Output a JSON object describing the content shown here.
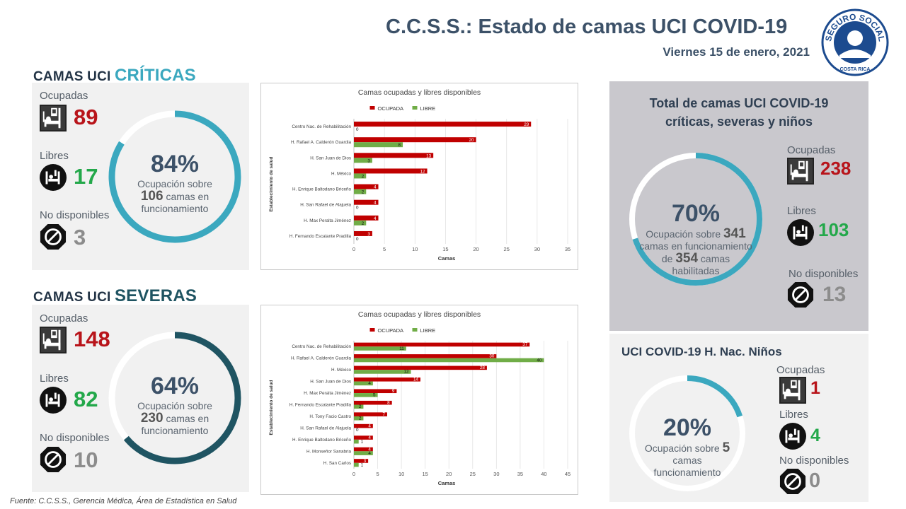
{
  "header": {
    "title": "C.C.S.S.: Estado de camas UCI COVID-19",
    "date": "Viernes 15 de enero, 2021",
    "logo_top": "SEGURO SOCIAL",
    "logo_bottom": "COSTA RICA"
  },
  "labels": {
    "occupied": "Ocupadas",
    "free": "Libres",
    "unavailable": "No disponibles",
    "occ_over": "Ocupación sobre",
    "beds_op": "camas en",
    "operating": "funcionamiento",
    "beds_operating": "camas en funcionamiento",
    "of": "de",
    "beds": "camas",
    "enabled": "habilitadas"
  },
  "criticas": {
    "title_small": "CAMAS UCI",
    "title_big": "CRÍTICAS",
    "occupied": "89",
    "free": "17",
    "unavailable": "3",
    "pct_text": "84%",
    "pct": 0.84,
    "total": "106",
    "ring_color": "#3ba8bf"
  },
  "severas": {
    "title_small": "CAMAS UCI",
    "title_big": "SEVERAS",
    "occupied": "148",
    "free": "82",
    "unavailable": "10",
    "pct_text": "64%",
    "pct": 0.64,
    "total": "230",
    "ring_color": "#1f5462"
  },
  "total": {
    "title_line1": "Total de camas UCI COVID-19",
    "title_line2": "críticas, severas y niños",
    "occupied": "238",
    "free": "103",
    "unavailable": "13",
    "pct_text": "70%",
    "pct": 0.7,
    "total": "341",
    "enabled": "354",
    "ring_color": "#3ba8bf"
  },
  "ninos": {
    "title": "UCI COVID-19 H. Nac. Niños",
    "occupied": "1",
    "free": "4",
    "unavailable": "0",
    "pct_text": "20%",
    "pct": 0.2,
    "total": "5",
    "ring_color": "#3ba8bf"
  },
  "source": "Fuente: C.C.S.S., Gerencia Médica, Área de Estadística en Salud",
  "chart_data": [
    {
      "type": "bar",
      "orientation": "horizontal",
      "title": "Camas ocupadas y libres disponibles",
      "xlabel": "Camas",
      "ylabel": "Establecimiento de salud",
      "xlim": [
        0,
        35
      ],
      "xticks": [
        0,
        5,
        10,
        15,
        20,
        25,
        30,
        35
      ],
      "grid": true,
      "legend": "top",
      "categories": [
        "Centro Nac. de Rehabilitación",
        "H. Rafael A. Calderón Guardia",
        "H. San Juan de Dios",
        "H. México",
        "H. Enrique Baltodano Briceño",
        "H. San Rafael de Alajuela",
        "H. Max Peralta Jiménez",
        "H. Fernando Escalante Pradilla"
      ],
      "series": [
        {
          "name": "OCUPADA",
          "color": "#c00000",
          "values": [
            29,
            20,
            13,
            12,
            4,
            4,
            4,
            3
          ]
        },
        {
          "name": "LIBRE",
          "color": "#70ad47",
          "values": [
            0,
            8,
            3,
            2,
            2,
            0,
            2,
            0
          ]
        }
      ]
    },
    {
      "type": "bar",
      "orientation": "horizontal",
      "title": "Camas ocupadas y libres disponibles",
      "xlabel": "Camas",
      "ylabel": "Establecimiento de salud",
      "xlim": [
        0,
        45
      ],
      "xticks": [
        0,
        5,
        10,
        15,
        20,
        25,
        30,
        35,
        40,
        45
      ],
      "grid": true,
      "legend": "top",
      "categories": [
        "Centro Nac. de Rehabilitación",
        "H. Rafael A. Calderón Guardia",
        "H. México",
        "H. San Juan de Dios",
        "H. Max Peralta Jiménez",
        "H. Fernando Escalante Pradilla",
        "H. Tony Facio Castro",
        "H. San Rafael de Alajuela",
        "H. Enrique Baltodano Briceño",
        "H. Monseñor Sanabria",
        "H. San Carlos"
      ],
      "series": [
        {
          "name": "OCUPADA",
          "color": "#c00000",
          "values": [
            37,
            30,
            28,
            14,
            9,
            8,
            7,
            4,
            4,
            4,
            3
          ]
        },
        {
          "name": "LIBRE",
          "color": "#70ad47",
          "values": [
            11,
            40,
            12,
            4,
            5,
            2,
            2,
            0,
            1,
            4,
            1
          ]
        }
      ]
    }
  ]
}
